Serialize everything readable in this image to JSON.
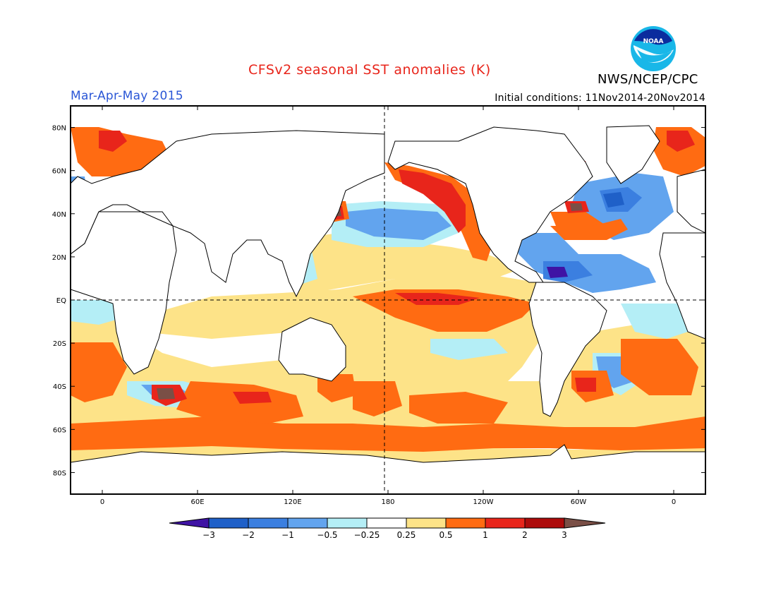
{
  "title": "CFSv2 seasonal SST anomalies (K)",
  "season": "Mar-Apr-May 2015",
  "initial_conditions": "Initial conditions: 11Nov2014-20Nov2014",
  "agency": "NWS/NCEP/CPC",
  "logo_text": "NOAA",
  "colors": {
    "title": "#e8251b",
    "season": "#2a56d6",
    "land": "#ffffff",
    "coast": "#000000"
  },
  "map": {
    "projection": "equirectangular",
    "lon_range": [
      -20,
      380
    ],
    "lat_range": [
      -90,
      90
    ],
    "lat_ticks": [
      "80N",
      "60N",
      "40N",
      "20N",
      "EQ",
      "20S",
      "40S",
      "60S",
      "80S"
    ],
    "lon_ticks": [
      "0",
      "60E",
      "120E",
      "180",
      "120W",
      "60W",
      "0"
    ],
    "dashed_lines": [
      "EQ",
      "180"
    ]
  },
  "colorbar": {
    "labels": [
      "-3",
      "-2",
      "-1",
      "-0.5",
      "-0.25",
      "0.25",
      "0.5",
      "1",
      "2",
      "3"
    ],
    "colors": [
      "#3f13a4",
      "#1f60c8",
      "#3b7fe0",
      "#62a4ee",
      "#b4eef6",
      "#ffffff",
      "#fde388",
      "#ff6b12",
      "#e8251b",
      "#ad0b0b",
      "#7a4f46"
    ]
  }
}
